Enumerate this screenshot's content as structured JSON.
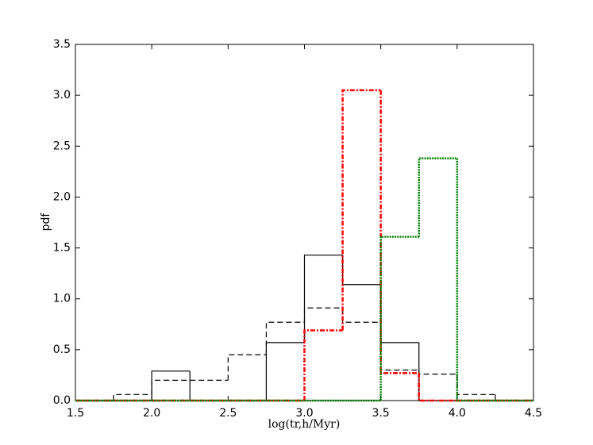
{
  "chart_data": {
    "type": "histogram",
    "xlabel": "log(tr,h/Myr)",
    "ylabel": "pdf",
    "bins": [
      1.5,
      1.75,
      2.0,
      2.25,
      2.5,
      2.75,
      3.0,
      3.25,
      3.5,
      3.75,
      4.0,
      4.25,
      4.5
    ],
    "series": [
      {
        "color": "#000000",
        "linestyle": "solid",
        "values": [
          0,
          0,
          0.29,
          0,
          0,
          0.57,
          1.43,
          1.14,
          0.57,
          0,
          0,
          0
        ]
      },
      {
        "color": "#000000",
        "linestyle": "dashed",
        "values": [
          0,
          0.06,
          0.2,
          0.2,
          0.45,
          0.77,
          0.91,
          0.77,
          0.3,
          0.26,
          0.06,
          0
        ]
      },
      {
        "color": "#ff0000",
        "linestyle": "dashdot",
        "values": [
          0,
          0,
          0,
          0,
          0,
          0,
          0.69,
          3.05,
          0.27,
          0,
          0,
          0
        ]
      },
      {
        "color": "#008000",
        "linestyle": "dotted",
        "values": [
          0,
          0,
          0,
          0,
          0,
          0,
          0,
          0,
          1.61,
          2.38,
          0,
          0
        ]
      }
    ],
    "xlim": [
      1.5,
      4.5
    ],
    "xticks": [
      1.5,
      {
        "value": 2,
        "label": "2.0"
      },
      2.5,
      {
        "value": 3,
        "label": "3.0"
      },
      3.5,
      {
        "value": 4,
        "label": "4.0"
      },
      4.5
    ],
    "ylim": [
      0,
      3.5
    ],
    "yticks": [
      {
        "value": 0,
        "label": "0.0"
      },
      0.5,
      {
        "value": 1,
        "label": "1.0"
      },
      1.5,
      {
        "value": 2,
        "label": "2.0"
      },
      2.5,
      {
        "value": 3,
        "label": "3.0"
      },
      3.5
    ],
    "grid": false
  }
}
